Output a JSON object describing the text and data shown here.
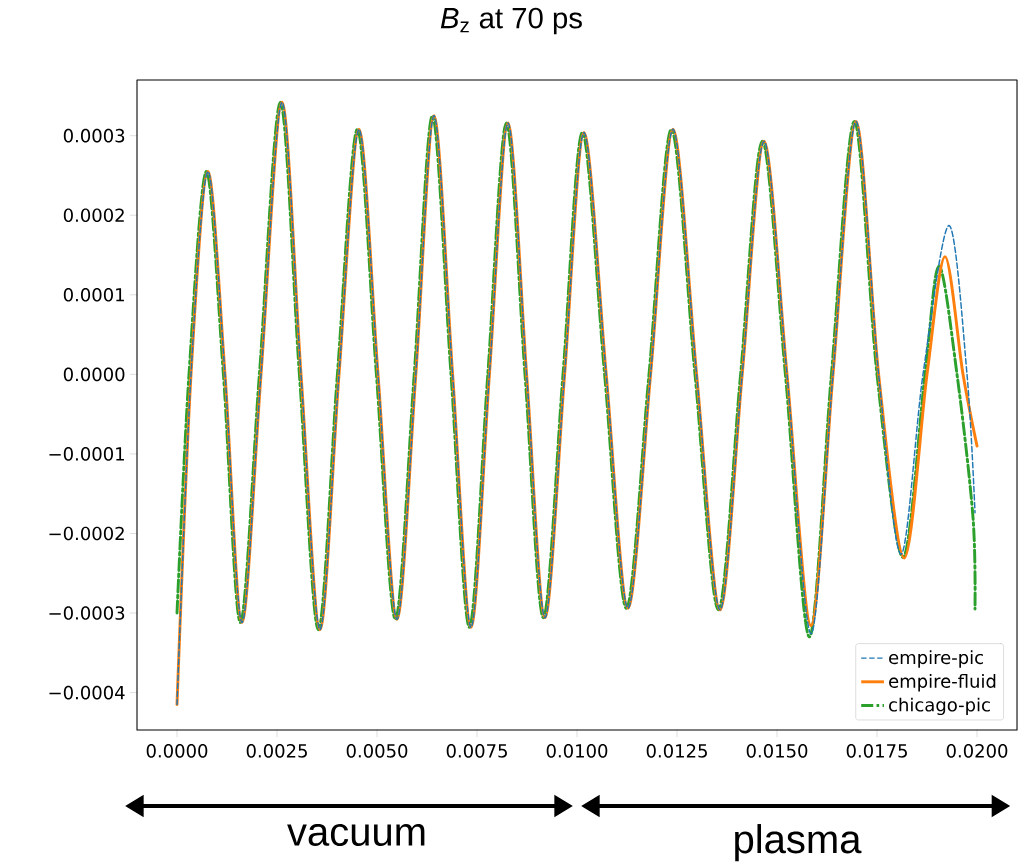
{
  "chart_data": {
    "type": "line",
    "title": "*B*$_{z}$ at 70 ps",
    "xlim": [
      -0.001,
      0.021
    ],
    "ylim": [
      -0.000447,
      0.00037
    ],
    "xticks": [
      {
        "value": 0,
        "label": "0.0000"
      },
      0.0025,
      {
        "value": 0.005,
        "label": "0.0050"
      },
      0.0075,
      {
        "value": 0.01,
        "label": "0.0100"
      },
      0.0125,
      {
        "value": 0.015,
        "label": "0.0150"
      },
      0.0175,
      {
        "value": 0.02,
        "label": "0.0200"
      }
    ],
    "yticks": [
      {
        "value": -0.0004,
        "label": "−0.0004"
      },
      {
        "value": -0.0003,
        "label": "−0.0003"
      },
      {
        "value": -0.0002,
        "label": "−0.0002"
      },
      {
        "value": -0.0001,
        "label": "−0.0001"
      },
      {
        "value": 0,
        "label": "0.0000"
      },
      0.0001,
      0.0002,
      0.0003
    ],
    "legend": "bottom right",
    "grid": false,
    "annotations": [
      "vacuum",
      "plasma"
    ],
    "series": [
      {
        "name": "empire-pic",
        "color": "#1f77b4",
        "line_style": "dashed",
        "x": [
          0,
          0.00035,
          0.000775,
          0.0012,
          0.001625,
          0.0021,
          0.002625,
          0.0031,
          0.003575,
          0.00405,
          0.00455,
          0.005025,
          0.0055,
          0.00597,
          0.006425,
          0.00689,
          0.00735,
          0.00781,
          0.008275,
          0.00874,
          0.0092,
          0.00969,
          0.010175,
          0.01073,
          0.011275,
          0.01184,
          0.0124,
          0.01299,
          0.013575,
          0.01413,
          0.014675,
          0.01525,
          0.01585,
          0.0164,
          0.016975,
          0.01754,
          0.0181,
          0.01865,
          0.0193,
          0.01975,
          0.01995
        ],
        "values": [
          -0.000415,
          0,
          0.000255,
          0,
          -0.000312,
          0,
          0.000342,
          0,
          -0.000321,
          0,
          0.000308,
          0,
          -0.000308,
          0,
          0.000325,
          0,
          -0.000318,
          0,
          0.000316,
          0,
          -0.000306,
          0,
          0.000304,
          0,
          -0.000294,
          0,
          0.000308,
          0,
          -0.000296,
          0,
          0.000293,
          0,
          -0.000326,
          0,
          0.000318,
          0,
          -0.000226,
          0,
          0.000187,
          0,
          -0.000174
        ]
      },
      {
        "name": "empire-fluid",
        "color": "#ff7f0e",
        "line_style": "solid",
        "x": [
          0,
          0.00035,
          0.000775,
          0.0012,
          0.001625,
          0.0021,
          0.002625,
          0.0031,
          0.003575,
          0.00405,
          0.00455,
          0.005025,
          0.0055,
          0.00597,
          0.006425,
          0.00689,
          0.00735,
          0.00781,
          0.008275,
          0.00874,
          0.0092,
          0.00969,
          0.010175,
          0.01073,
          0.011275,
          0.01184,
          0.0124,
          0.01299,
          0.013575,
          0.01413,
          0.014675,
          0.01525,
          0.01585,
          0.0164,
          0.016975,
          0.01754,
          0.01818,
          0.01875,
          0.0192,
          0.01965,
          0.02
        ],
        "values": [
          -0.000415,
          0,
          0.000255,
          0,
          -0.000312,
          0,
          0.000342,
          0,
          -0.000321,
          0,
          0.000308,
          0,
          -0.000308,
          0,
          0.000325,
          0,
          -0.000318,
          0,
          0.000316,
          0,
          -0.000306,
          0,
          0.000304,
          0,
          -0.000294,
          0,
          0.000308,
          0,
          -0.000296,
          0,
          0.000293,
          0,
          -0.000316,
          0,
          0.000318,
          0,
          -0.000231,
          0,
          0.000148,
          0,
          -9e-05
        ]
      },
      {
        "name": "chicago-pic",
        "color": "#2ca02c",
        "line_style": "dashdot",
        "x": [
          0,
          0.0003,
          0.000735,
          0.00116,
          0.001585,
          0.00206,
          0.002585,
          0.00306,
          0.003535,
          0.00401,
          0.00451,
          0.004985,
          0.00546,
          0.00593,
          0.006385,
          0.00685,
          0.00731,
          0.00777,
          0.008235,
          0.0087,
          0.00916,
          0.00965,
          0.010135,
          0.01069,
          0.011235,
          0.0118,
          0.01236,
          0.01295,
          0.013535,
          0.01409,
          0.014635,
          0.01521,
          0.01581,
          0.01636,
          0.016935,
          0.0175,
          0.01815,
          0.0187,
          0.01905,
          0.0195,
          0.0199,
          0.01995
        ],
        "values": [
          -0.0003,
          0,
          0.000255,
          0,
          -0.000312,
          0,
          0.000342,
          0,
          -0.000321,
          0,
          0.000308,
          0,
          -0.000308,
          0,
          0.000325,
          0,
          -0.000318,
          0,
          0.000316,
          0,
          -0.000306,
          0,
          0.000304,
          0,
          -0.000294,
          0,
          0.000308,
          0,
          -0.000296,
          0,
          0.000293,
          0,
          -0.00033,
          0,
          0.000318,
          0,
          -0.00023,
          0,
          0.000136,
          0,
          -0.00018,
          -0.000295
        ]
      }
    ]
  }
}
